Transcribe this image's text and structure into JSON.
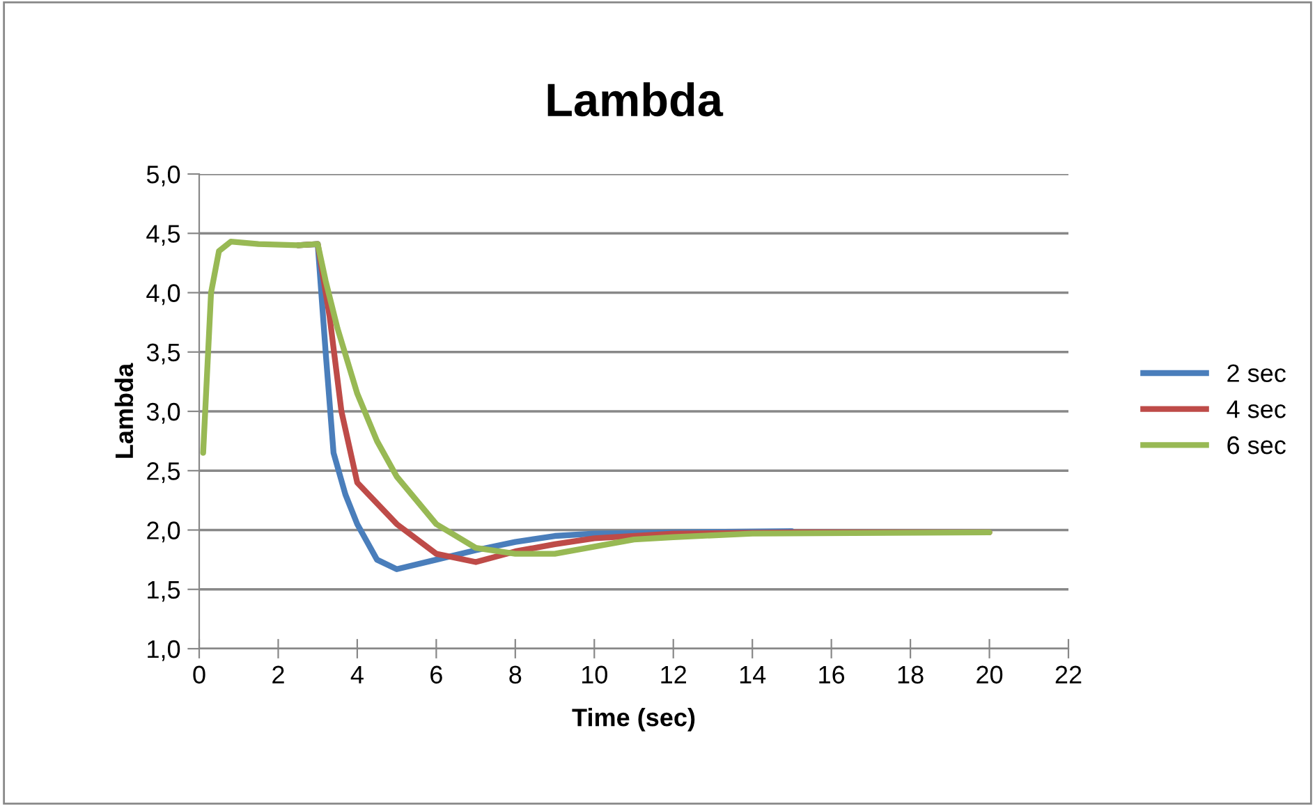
{
  "chart_data": {
    "type": "line",
    "title": "Lambda",
    "xlabel": "Time (sec)",
    "ylabel": "Lambda",
    "xlim": [
      0,
      22
    ],
    "xticks": [
      0,
      2,
      4,
      6,
      8,
      10,
      12,
      14,
      16,
      18,
      20,
      22
    ],
    "ylim": [
      1.0,
      5.0
    ],
    "yticks": [
      {
        "value": 1.0,
        "label": "1,0"
      },
      {
        "value": 1.5,
        "label": "1,5"
      },
      {
        "value": 2.0,
        "label": "2,0"
      },
      {
        "value": 2.5,
        "label": "2,5"
      },
      {
        "value": 3.0,
        "label": "3,0"
      },
      {
        "value": 3.5,
        "label": "3,5"
      },
      {
        "value": 4.0,
        "label": "4,0"
      },
      {
        "value": 4.5,
        "label": "4,5"
      },
      {
        "value": 5.0,
        "label": "5,0"
      }
    ],
    "grid": "y",
    "legend": "right",
    "marker": "none",
    "line_style": "solid",
    "series": [
      {
        "name": "2 sec",
        "color": "#4a7ebb",
        "x": [
          2.5,
          3.0,
          3.2,
          3.4,
          3.7,
          4.0,
          4.5,
          5.0,
          6.0,
          7.0,
          8.0,
          9.0,
          10.0,
          12.0,
          15.0
        ],
        "values": [
          4.4,
          4.41,
          3.5,
          2.65,
          2.3,
          2.05,
          1.75,
          1.67,
          1.75,
          1.83,
          1.9,
          1.95,
          1.97,
          1.98,
          1.99
        ]
      },
      {
        "name": "4 sec",
        "color": "#be4b48",
        "x": [
          2.5,
          3.0,
          3.3,
          3.6,
          4.0,
          5.0,
          6.0,
          7.0,
          8.0,
          9.0,
          10.0,
          12.0,
          15.0,
          20.0
        ],
        "values": [
          4.4,
          4.41,
          3.8,
          3.0,
          2.4,
          2.05,
          1.8,
          1.73,
          1.82,
          1.88,
          1.93,
          1.97,
          1.98,
          1.98
        ]
      },
      {
        "name": "6 sec",
        "color": "#98b954",
        "x": [
          0.1,
          0.3,
          0.5,
          0.8,
          1.5,
          2.5,
          3.0,
          3.2,
          3.5,
          4.0,
          4.5,
          5.0,
          6.0,
          7.0,
          8.0,
          9.0,
          10.0,
          11.0,
          12.0,
          14.0,
          20.0
        ],
        "values": [
          2.65,
          4.0,
          4.35,
          4.43,
          4.41,
          4.4,
          4.41,
          4.1,
          3.7,
          3.15,
          2.75,
          2.45,
          2.05,
          1.85,
          1.8,
          1.8,
          1.86,
          1.92,
          1.94,
          1.97,
          1.98
        ]
      }
    ]
  }
}
